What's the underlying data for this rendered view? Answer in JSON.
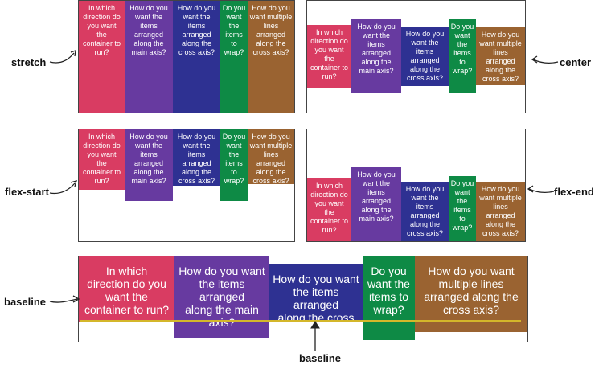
{
  "colors": {
    "c1": "#d93c62",
    "c2": "#673aa0",
    "c3": "#2e3192",
    "c4": "#0e8a45",
    "c5": "#9a6331",
    "baseline": "#d4b72a"
  },
  "items": {
    "i1": "In which\ndirection do\nyou want\nthe\ncontainer to\nrun?",
    "i2": "How do you\nwant the\nitems\narranged\nalong the\nmain axis?",
    "i3": "How do you\nwant the\nitems\narranged\nalong the\ncross axis?",
    "i4": "Do you\nwant\nthe\nitems\nto\nwrap?",
    "i5": "How do you\nwant multiple\nlines arranged\nalong the\ncross axis?"
  },
  "baseline_items": {
    "i1": "In which\ndirection do you\nwant the\ncontainer to run?",
    "i2": "How do you want\nthe items arranged\nalong the main\naxis?",
    "i3": "How do you want\nthe items arranged\nalong the cross\naxis?",
    "i4": "Do you\nwant the\nitems to\nwrap?",
    "i5": "How do you want\nmultiple lines\narranged along the\ncross axis?"
  },
  "labels": {
    "stretch": "stretch",
    "center": "center",
    "flex_start": "flex-start",
    "flex_end": "flex-end",
    "baseline": "baseline",
    "baseline_caption": "baseline"
  }
}
